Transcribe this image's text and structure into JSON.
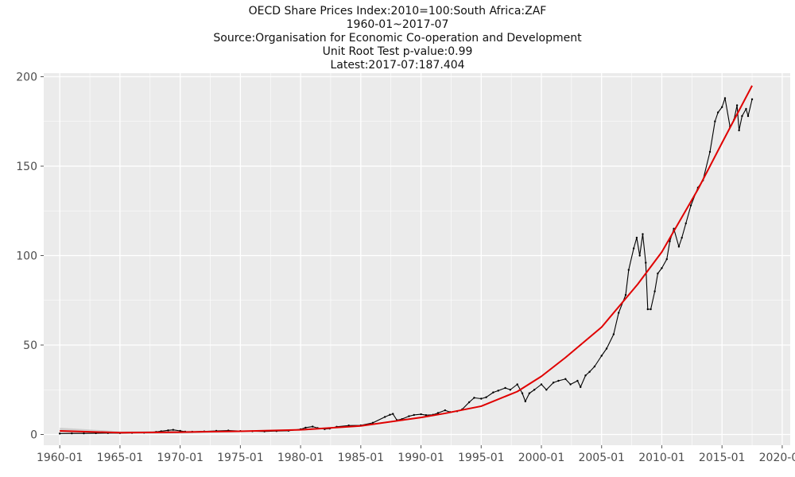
{
  "chart_data": {
    "type": "line",
    "title_lines": [
      "OECD Share Prices Index:2010=100:South Africa:ZAF",
      "1960-01~2017-07",
      "Source:Organisation for Economic Co-operation and Development",
      "Unit Root Test p-value:0.99",
      "Latest:2017-07:187.404"
    ],
    "xlabel": "",
    "ylabel": "",
    "x_ticks": [
      "1960-01",
      "1965-01",
      "1970-01",
      "1975-01",
      "1980-01",
      "1985-01",
      "1990-01",
      "1995-01",
      "2000-01",
      "2005-01",
      "2010-01",
      "2015-01",
      "2020-01"
    ],
    "y_ticks": [
      0,
      50,
      100,
      150,
      200
    ],
    "ylim": [
      -6,
      202
    ],
    "xlim": [
      "1958-09",
      "2020-09"
    ],
    "grid": true,
    "legend": "none",
    "colors": {
      "panel_bg": "#ebebeb",
      "grid": "#ffffff",
      "series": "#000000",
      "trend": "#e00000",
      "ribbon": "#bdbdbd"
    },
    "series": [
      {
        "x": [
          "1960-01",
          "1961-01",
          "1962-01",
          "1963-01",
          "1964-01",
          "1965-01",
          "1966-01",
          "1967-01",
          "1968-01",
          "1968-06",
          "1969-01",
          "1969-06",
          "1970-01",
          "1970-06",
          "1971-01",
          "1972-01",
          "1973-01",
          "1974-01",
          "1975-01",
          "1976-01",
          "1977-01",
          "1978-01",
          "1979-01",
          "1980-01",
          "1980-06",
          "1981-01",
          "1981-06",
          "1982-01",
          "1982-06",
          "1983-01",
          "1984-01",
          "1985-01",
          "1986-01",
          "1987-01",
          "1987-06",
          "1987-09",
          "1988-01",
          "1988-06",
          "1989-01",
          "1989-06",
          "1990-01",
          "1990-06",
          "1991-01",
          "1991-06",
          "1992-01",
          "1992-06",
          "1993-01",
          "1993-06",
          "1994-01",
          "1994-06",
          "1995-01",
          "1995-06",
          "1996-01",
          "1996-06",
          "1997-01",
          "1997-06",
          "1998-01",
          "1998-06",
          "1998-09",
          "1999-01",
          "1999-06",
          "2000-01",
          "2000-06",
          "2001-01",
          "2001-06",
          "2002-01",
          "2002-06",
          "2003-01",
          "2003-04",
          "2003-09",
          "2004-01",
          "2004-06",
          "2005-01",
          "2005-06",
          "2006-01",
          "2006-06",
          "2007-01",
          "2007-04",
          "2007-09",
          "2007-12",
          "2008-03",
          "2008-06",
          "2008-09",
          "2008-11",
          "2009-02",
          "2009-06",
          "2009-09",
          "2010-01",
          "2010-06",
          "2010-09",
          "2011-01",
          "2011-06",
          "2011-09",
          "2012-01",
          "2012-06",
          "2013-01",
          "2013-06",
          "2014-01",
          "2014-06",
          "2014-09",
          "2015-01",
          "2015-04",
          "2015-09",
          "2016-01",
          "2016-04",
          "2016-06",
          "2016-09",
          "2017-01",
          "2017-03",
          "2017-07"
        ],
        "values": [
          0.5,
          0.6,
          0.6,
          0.7,
          0.8,
          0.8,
          0.9,
          1.0,
          1.4,
          1.8,
          2.3,
          2.6,
          2.0,
          1.6,
          1.5,
          1.7,
          2.0,
          2.2,
          1.9,
          1.8,
          1.7,
          1.9,
          2.1,
          2.9,
          3.8,
          4.4,
          3.6,
          3.0,
          3.3,
          4.3,
          5.0,
          5.1,
          6.5,
          9.8,
          11.0,
          11.5,
          8.0,
          8.6,
          10.2,
          10.9,
          11.3,
          10.8,
          11.0,
          12.0,
          13.5,
          12.5,
          13.0,
          14.0,
          18.0,
          20.5,
          20.0,
          20.8,
          23.5,
          24.5,
          26.0,
          25.0,
          28.0,
          23.0,
          18.5,
          23.0,
          25.0,
          28.0,
          25.0,
          29.0,
          30.0,
          31.0,
          28.0,
          30.0,
          26.5,
          33.0,
          35.0,
          38.0,
          44.0,
          48.0,
          56.0,
          68.0,
          78.0,
          92.0,
          104.0,
          110.0,
          100.0,
          112.0,
          96.0,
          70.0,
          70.0,
          80.0,
          90.0,
          93.0,
          98.0,
          108.0,
          115.0,
          105.0,
          110.0,
          118.0,
          128.0,
          138.0,
          142.0,
          158.0,
          175.0,
          180.0,
          183.0,
          188.0,
          172.0,
          176.0,
          184.0,
          170.0,
          178.0,
          182.0,
          178.0,
          187.404
        ]
      },
      {
        "x": [
          "1960-01",
          "1965-01",
          "1970-01",
          "1975-01",
          "1980-01",
          "1985-01",
          "1990-01",
          "1992-01",
          "1995-01",
          "1998-01",
          "2000-01",
          "2002-01",
          "2005-01",
          "2008-01",
          "2010-01",
          "2013-01",
          "2015-01",
          "2017-07"
        ],
        "values": [
          2.0,
          1.0,
          1.3,
          1.8,
          2.6,
          4.8,
          9.5,
          11.8,
          15.8,
          24.0,
          32.5,
          43.0,
          60.0,
          84.0,
          102.0,
          137.0,
          163.0,
          195.0
        ]
      }
    ]
  }
}
